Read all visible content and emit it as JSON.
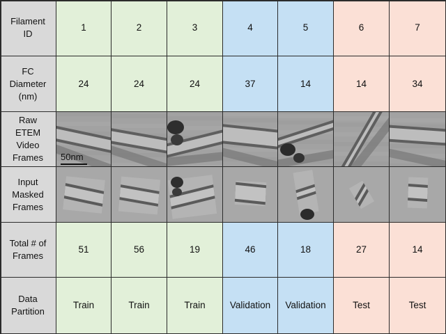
{
  "table": {
    "row_headers": [
      "Filament\nID",
      "FC\nDiameter\n(nm)",
      "Raw\nETEM\nVideo\nFrames",
      "Input\nMasked\nFrames",
      "Total # of\nFrames",
      "Data\nPartition"
    ],
    "columns": [
      {
        "id": "1",
        "diameter": "24",
        "frames": "51",
        "partition": "Train",
        "group": "train"
      },
      {
        "id": "2",
        "diameter": "24",
        "frames": "56",
        "partition": "Train",
        "group": "train"
      },
      {
        "id": "3",
        "diameter": "24",
        "frames": "19",
        "partition": "Train",
        "group": "train"
      },
      {
        "id": "4",
        "diameter": "37",
        "frames": "46",
        "partition": "Validation",
        "group": "val"
      },
      {
        "id": "5",
        "diameter": "14",
        "frames": "18",
        "partition": "Validation",
        "group": "val"
      },
      {
        "id": "6",
        "diameter": "14",
        "frames": "27",
        "partition": "Test",
        "group": "test"
      },
      {
        "id": "7",
        "diameter": "34",
        "frames": "14",
        "partition": "Test",
        "group": "test"
      }
    ],
    "scale_bar_label": "50nm"
  },
  "colors": {
    "header": "#d9d9d9",
    "train": "#e2f0d9",
    "validation": "#c5e0f4",
    "test": "#fbe0d6",
    "border": "#2b2b2b"
  }
}
